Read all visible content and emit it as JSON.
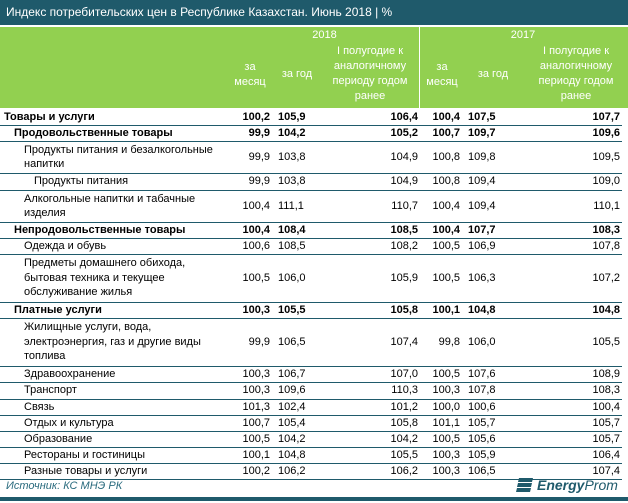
{
  "title": "Индекс потребительских цен в Республике Казахстан. Июнь 2018 | %",
  "header": {
    "years": [
      "2018",
      "2017"
    ],
    "columns": [
      "за месяц",
      "за год",
      "I полугодие к аналогичному периоду годом ранее",
      "за месяц",
      "за год",
      "I полугодие к аналогичному периоду годом ранее"
    ]
  },
  "rows": [
    {
      "label": "Товары и услуги",
      "level": 0,
      "bold": true,
      "values": [
        "100,2",
        "105,9",
        "106,4",
        "100,4",
        "107,5",
        "107,7"
      ]
    },
    {
      "label": "Продовольственные товары",
      "level": 1,
      "bold": true,
      "values": [
        "99,9",
        "104,2",
        "105,2",
        "100,7",
        "109,7",
        "109,6"
      ]
    },
    {
      "label": "Продукты питания и безалкогольные напитки",
      "level": 2,
      "bold": false,
      "values": [
        "99,9",
        "103,8",
        "104,9",
        "100,8",
        "109,8",
        "109,5"
      ]
    },
    {
      "label": "Продукты питания",
      "level": 3,
      "bold": false,
      "values": [
        "99,9",
        "103,8",
        "104,9",
        "100,8",
        "109,4",
        "109,0"
      ]
    },
    {
      "label": "Алкогольные напитки и табачные изделия",
      "level": 2,
      "bold": false,
      "values": [
        "100,4",
        "111,1",
        "110,7",
        "100,4",
        "109,4",
        "110,1"
      ]
    },
    {
      "label": "Непродовольственные товары",
      "level": 1,
      "bold": true,
      "values": [
        "100,4",
        "108,4",
        "108,5",
        "100,4",
        "107,7",
        "108,3"
      ]
    },
    {
      "label": "Одежда и обувь",
      "level": 2,
      "bold": false,
      "values": [
        "100,6",
        "108,5",
        "108,2",
        "100,5",
        "106,9",
        "107,8"
      ]
    },
    {
      "label": "Предметы домашнего обихода, бытовая техника и текущее обслуживание жилья",
      "level": 2,
      "bold": false,
      "values": [
        "100,5",
        "106,0",
        "105,9",
        "100,5",
        "106,3",
        "107,2"
      ]
    },
    {
      "label": "Платные услуги",
      "level": 1,
      "bold": true,
      "values": [
        "100,3",
        "105,5",
        "105,8",
        "100,1",
        "104,8",
        "104,8"
      ]
    },
    {
      "label": "Жилищные услуги, вода, электроэнергия, газ и другие виды топлива",
      "level": 2,
      "bold": false,
      "values": [
        "99,9",
        "106,5",
        "107,4",
        "99,8",
        "106,0",
        "105,5"
      ]
    },
    {
      "label": "Здравоохранение",
      "level": 2,
      "bold": false,
      "values": [
        "100,3",
        "106,7",
        "107,0",
        "100,5",
        "107,6",
        "108,9"
      ]
    },
    {
      "label": "Транспорт",
      "level": 2,
      "bold": false,
      "values": [
        "100,3",
        "109,6",
        "110,3",
        "100,3",
        "107,8",
        "108,3"
      ]
    },
    {
      "label": "Связь",
      "level": 2,
      "bold": false,
      "values": [
        "101,3",
        "102,4",
        "101,2",
        "100,0",
        "100,6",
        "100,4"
      ]
    },
    {
      "label": "Отдых и культура",
      "level": 2,
      "bold": false,
      "values": [
        "100,7",
        "105,4",
        "105,8",
        "101,1",
        "105,7",
        "105,7"
      ]
    },
    {
      "label": "Образование",
      "level": 2,
      "bold": false,
      "values": [
        "100,5",
        "104,2",
        "104,2",
        "100,5",
        "105,6",
        "105,7"
      ]
    },
    {
      "label": "Рестораны и гостиницы",
      "level": 2,
      "bold": false,
      "values": [
        "100,1",
        "104,8",
        "105,5",
        "100,3",
        "105,9",
        "106,4"
      ]
    },
    {
      "label": "Разные товары и услуги",
      "level": 2,
      "bold": false,
      "values": [
        "100,2",
        "106,2",
        "106,2",
        "100,3",
        "106,5",
        "107,4"
      ]
    }
  ],
  "source": "Источник: КС МНЭ РК",
  "logo": {
    "part1": "Energy",
    "part2": "Prom",
    "color": "#1f5a6b"
  },
  "colors": {
    "title_bg": "#1f5a6b",
    "header_bg": "#92d050"
  }
}
